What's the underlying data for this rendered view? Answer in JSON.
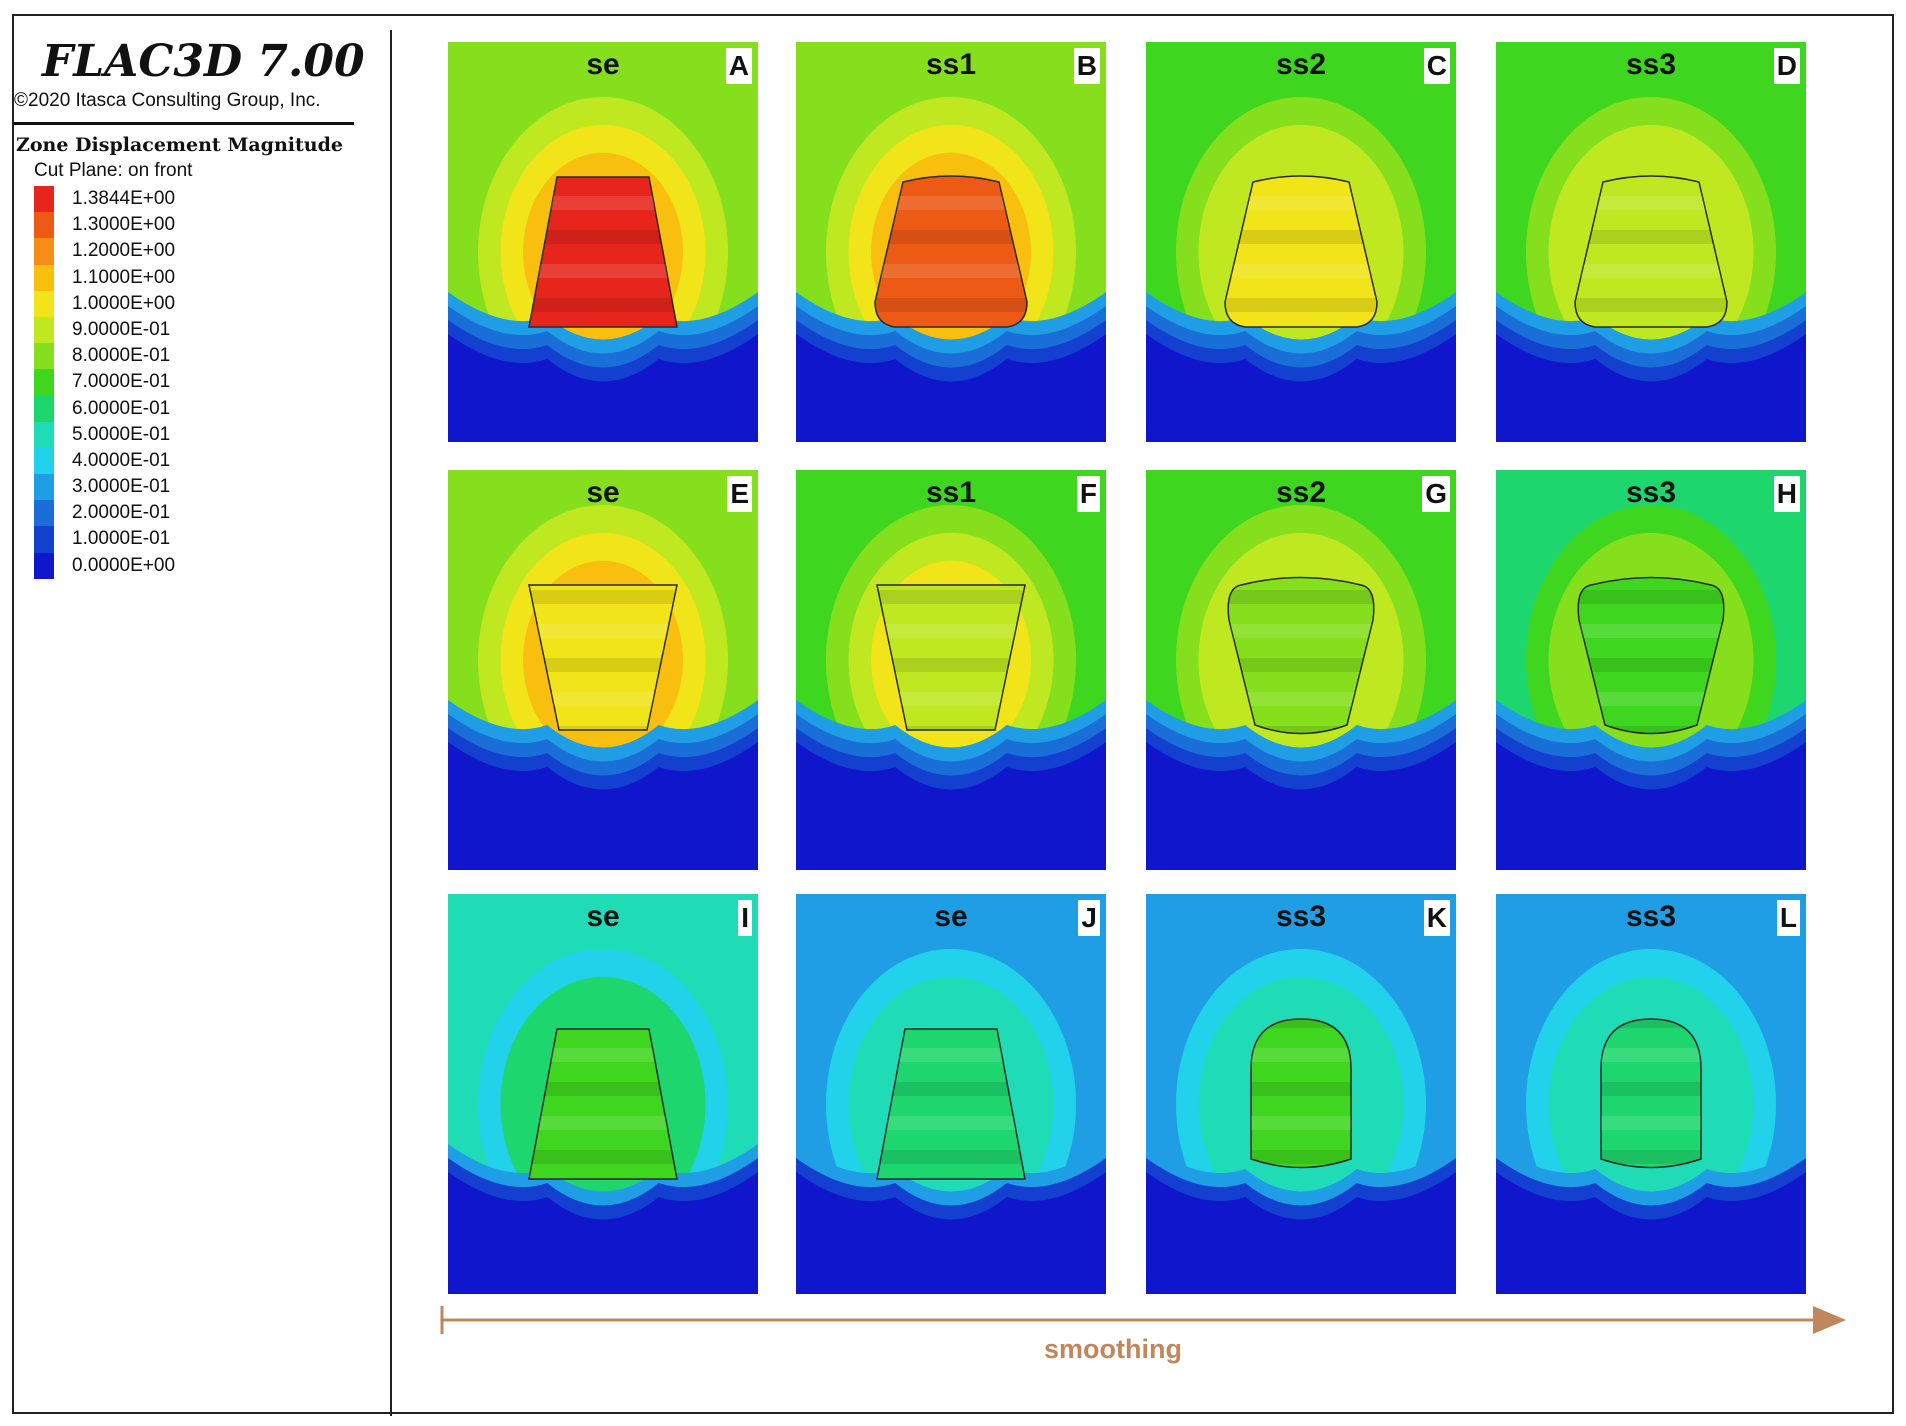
{
  "legend": {
    "title": "FLAC3D 7.00",
    "copyright": "©2020 Itasca Consulting Group, Inc.",
    "heading": "Zone Displacement Magnitude",
    "subheading": "Cut Plane: on front",
    "entries": [
      {
        "value": "1.3844E+00",
        "color": "#e8251c"
      },
      {
        "value": "1.3000E+00",
        "color": "#ec5a16"
      },
      {
        "value": "1.2000E+00",
        "color": "#f78d14"
      },
      {
        "value": "1.1000E+00",
        "color": "#f8bf0f"
      },
      {
        "value": "1.0000E+00",
        "color": "#f1e418"
      },
      {
        "value": "9.0000E-01",
        "color": "#bfe821"
      },
      {
        "value": "8.0000E-01",
        "color": "#85df1d"
      },
      {
        "value": "7.0000E-01",
        "color": "#3fd61f"
      },
      {
        "value": "6.0000E-01",
        "color": "#1ed66e"
      },
      {
        "value": "5.0000E-01",
        "color": "#1fdcb6"
      },
      {
        "value": "4.0000E-01",
        "color": "#21d2ea"
      },
      {
        "value": "3.0000E-01",
        "color": "#1f9ee6"
      },
      {
        "value": "2.0000E-01",
        "color": "#1a6ed8"
      },
      {
        "value": "1.0000E-01",
        "color": "#1440d0"
      },
      {
        "value": "0.0000E+00",
        "color": "#1016cc"
      }
    ]
  },
  "panels": [
    {
      "letter": "A",
      "label": "se",
      "bg": "#85df1d",
      "halo": [
        "#bfe821",
        "#f1e418",
        "#f8bf0f",
        "#f78d14"
      ],
      "shaft": "#e8251c",
      "shape": "trapezoid"
    },
    {
      "letter": "B",
      "label": "ss1",
      "bg": "#85df1d",
      "halo": [
        "#bfe821",
        "#f1e418",
        "#f8bf0f"
      ],
      "shaft": "#ec5a16",
      "shape": "rounded"
    },
    {
      "letter": "C",
      "label": "ss2",
      "bg": "#3fd61f",
      "halo": [
        "#85df1d",
        "#bfe821"
      ],
      "shaft": "#f1e418",
      "shape": "rounded"
    },
    {
      "letter": "D",
      "label": "ss3",
      "bg": "#3fd61f",
      "halo": [
        "#85df1d",
        "#bfe821"
      ],
      "shaft": "#bfe821",
      "shape": "rounded"
    },
    {
      "letter": "E",
      "label": "se",
      "bg": "#85df1d",
      "halo": [
        "#bfe821",
        "#f1e418",
        "#f8bf0f"
      ],
      "shaft": "#f1e418",
      "shape": "inverted"
    },
    {
      "letter": "F",
      "label": "ss1",
      "bg": "#3fd61f",
      "halo": [
        "#85df1d",
        "#bfe821",
        "#f1e418"
      ],
      "shaft": "#bfe821",
      "shape": "inverted"
    },
    {
      "letter": "G",
      "label": "ss2",
      "bg": "#3fd61f",
      "halo": [
        "#85df1d",
        "#bfe821"
      ],
      "shaft": "#85df1d",
      "shape": "inverted-rounded"
    },
    {
      "letter": "H",
      "label": "ss3",
      "bg": "#1ed66e",
      "halo": [
        "#3fd61f",
        "#85df1d"
      ],
      "shaft": "#3fd61f",
      "shape": "inverted-rounded"
    },
    {
      "letter": "I",
      "label": "se",
      "bg": "#1fdcb6",
      "halo": [
        "#21d2ea",
        "#1ed66e"
      ],
      "shaft": "#3fd61f",
      "shape": "trapezoid"
    },
    {
      "letter": "J",
      "label": "se",
      "bg": "#1f9ee6",
      "halo": [
        "#21d2ea",
        "#1fdcb6"
      ],
      "shaft": "#1ed66e",
      "shape": "trapezoid"
    },
    {
      "letter": "K",
      "label": "ss3",
      "bg": "#1f9ee6",
      "halo": [
        "#21d2ea",
        "#1fdcb6"
      ],
      "shaft": "#3fd61f",
      "shape": "dome"
    },
    {
      "letter": "L",
      "label": "ss3",
      "bg": "#1f9ee6",
      "halo": [
        "#21d2ea",
        "#1fdcb6"
      ],
      "shaft": "#1ed66e",
      "shape": "dome"
    }
  ],
  "footer": {
    "label": "smoothing",
    "arrow_color": "#c0865c"
  }
}
